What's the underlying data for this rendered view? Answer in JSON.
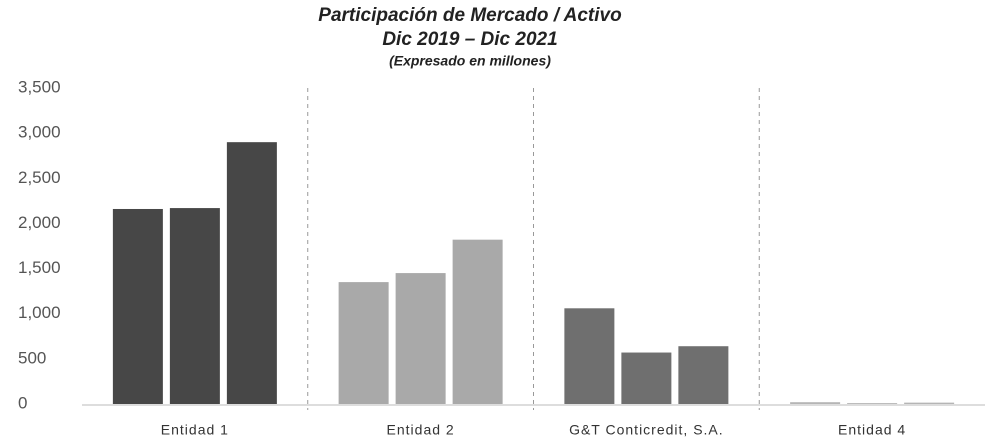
{
  "chart_data": {
    "type": "bar",
    "title": "Participación de Mercado / Activo",
    "subtitle": "Dic 2019 – Dic 2021",
    "note": "(Expresado en millones)",
    "categories": [
      "Entidad 1",
      "Entidad 2",
      "G&T Conticredit, S.A.",
      "Entidad 4"
    ],
    "series": [
      {
        "values": [
          2160,
          1350,
          1060,
          20
        ]
      },
      {
        "values": [
          2170,
          1450,
          570,
          10
        ]
      },
      {
        "values": [
          2900,
          1820,
          640,
          15
        ]
      }
    ],
    "colors": [
      "#474747",
      "#a9a9a9",
      "#6f6f6f",
      "#b5b5b5"
    ],
    "ylim": [
      0,
      3500
    ],
    "yticks": [
      0,
      500,
      {
        "value": 1000,
        "label": "1,000"
      },
      {
        "value": 1500,
        "label": "1,500"
      },
      {
        "value": 2000,
        "label": "2,000"
      },
      {
        "value": 2500,
        "label": "2,500"
      },
      {
        "value": 3000,
        "label": "3,000"
      },
      {
        "value": 3500,
        "label": "3,500"
      }
    ],
    "grid": false
  }
}
